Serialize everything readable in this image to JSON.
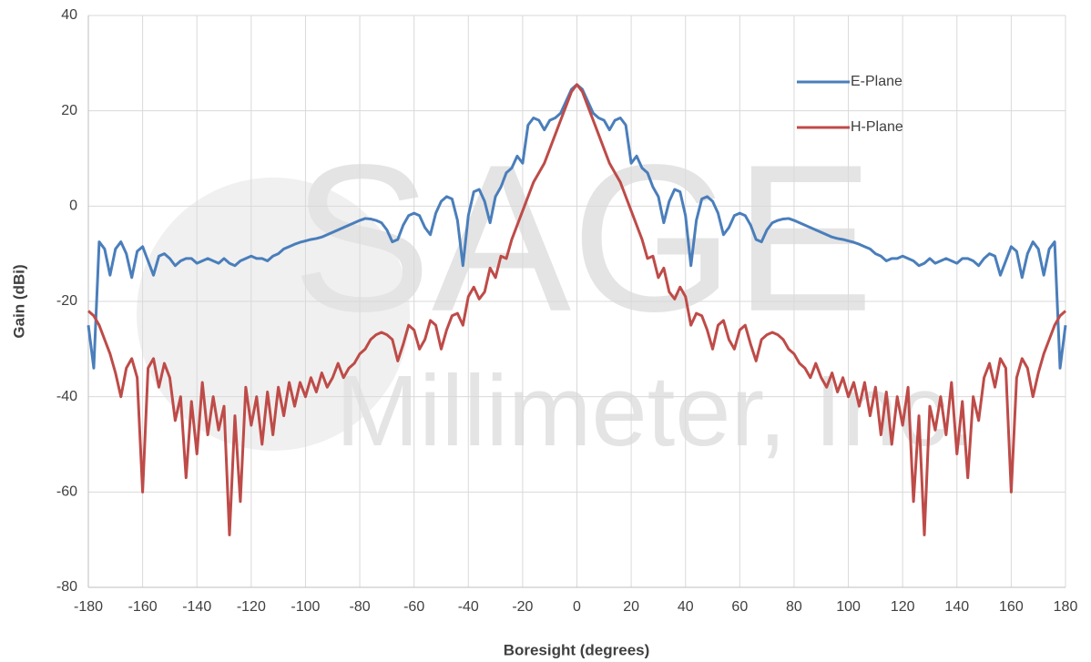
{
  "chart_data": {
    "type": "line",
    "x_label": "Boresight (degrees)",
    "y_label": "Gain (dBi)",
    "watermark": [
      "SAGE",
      "Millimeter, Inc."
    ],
    "xlim": [
      -180,
      180
    ],
    "xticks": [
      -180,
      -160,
      -140,
      -120,
      -100,
      -80,
      -60,
      -40,
      -20,
      0,
      20,
      40,
      60,
      80,
      100,
      120,
      140,
      160,
      180
    ],
    "ylim": [
      -80,
      40
    ],
    "yticks": [
      -80,
      -60,
      -40,
      -20,
      0,
      20,
      40
    ],
    "grid": true,
    "legend": "top-right",
    "x": [
      -180,
      -178,
      -176,
      -174,
      -172,
      -170,
      -168,
      -166,
      -164,
      -162,
      -160,
      -158,
      -156,
      -154,
      -152,
      -150,
      -148,
      -146,
      -144,
      -142,
      -140,
      -138,
      -136,
      -134,
      -132,
      -130,
      -128,
      -126,
      -124,
      -122,
      -120,
      -118,
      -116,
      -114,
      -112,
      -110,
      -108,
      -106,
      -104,
      -102,
      -100,
      -98,
      -96,
      -94,
      -92,
      -90,
      -88,
      -86,
      -84,
      -82,
      -80,
      -78,
      -76,
      -74,
      -72,
      -70,
      -68,
      -66,
      -64,
      -62,
      -60,
      -58,
      -56,
      -54,
      -52,
      -50,
      -48,
      -46,
      -44,
      -42,
      -40,
      -38,
      -36,
      -34,
      -32,
      -30,
      -28,
      -26,
      -24,
      -22,
      -20,
      -18,
      -16,
      -14,
      -12,
      -10,
      -8,
      -6,
      -4,
      -2,
      0,
      2,
      4,
      6,
      8,
      10,
      12,
      14,
      16,
      18,
      20,
      22,
      24,
      26,
      28,
      30,
      32,
      34,
      36,
      38,
      40,
      42,
      44,
      46,
      48,
      50,
      52,
      54,
      56,
      58,
      60,
      62,
      64,
      66,
      68,
      70,
      72,
      74,
      76,
      78,
      80,
      82,
      84,
      86,
      88,
      90,
      92,
      94,
      96,
      98,
      100,
      102,
      104,
      106,
      108,
      110,
      112,
      114,
      116,
      118,
      120,
      122,
      124,
      126,
      128,
      130,
      132,
      134,
      136,
      138,
      140,
      142,
      144,
      146,
      148,
      150,
      152,
      154,
      156,
      158,
      160,
      162,
      164,
      166,
      168,
      170,
      172,
      174,
      176,
      178,
      180
    ],
    "series": [
      {
        "name": "E-Plane",
        "color": "#4a7ebb",
        "values": [
          -25,
          -34,
          -7.5,
          -9,
          -14.5,
          -9,
          -7.5,
          -10,
          -15,
          -9.5,
          -8.5,
          -11.5,
          -14.5,
          -10.5,
          -10,
          -11,
          -12.5,
          -11.5,
          -11,
          -11,
          -12,
          -11.5,
          -11,
          -11.5,
          -12,
          -11,
          -12,
          -12.5,
          -11.5,
          -11,
          -10.5,
          -11,
          -11,
          -11.5,
          -10.5,
          -10,
          -9,
          -8.5,
          -8,
          -7.6,
          -7.3,
          -7,
          -6.8,
          -6.5,
          -6,
          -5.5,
          -5,
          -4.5,
          -4,
          -3.5,
          -3,
          -2.6,
          -2.7,
          -3,
          -3.5,
          -5,
          -7.5,
          -7,
          -4,
          -2,
          -1.5,
          -2,
          -4.5,
          -6,
          -1.5,
          1,
          2,
          1.5,
          -3,
          -12.5,
          -2,
          3,
          3.5,
          1,
          -3.5,
          2,
          4,
          7,
          8,
          10.5,
          9,
          17,
          18.5,
          18,
          16,
          18,
          18.5,
          19.5,
          22,
          24.5,
          25.5,
          24.5,
          22,
          19.5,
          18.5,
          18,
          16,
          18,
          18.5,
          17,
          9,
          10.5,
          8,
          7,
          4,
          2,
          -3.5,
          1,
          3.5,
          3,
          -2,
          -12.5,
          -3,
          1.5,
          2,
          1,
          -1.5,
          -6,
          -4.5,
          -2,
          -1.5,
          -2,
          -4,
          -7,
          -7.5,
          -5,
          -3.5,
          -3,
          -2.7,
          -2.6,
          -3,
          -3.5,
          -4,
          -4.5,
          -5,
          -5.5,
          -6,
          -6.5,
          -6.8,
          -7,
          -7.3,
          -7.6,
          -8,
          -8.5,
          -9,
          -10,
          -10.5,
          -11.5,
          -11,
          -11,
          -10.5,
          -11,
          -11.5,
          -12.5,
          -12,
          -11,
          -12,
          -11.5,
          -11,
          -11.5,
          -12,
          -11,
          -11,
          -11.5,
          -12.5,
          -11,
          -10,
          -10.5,
          -14.5,
          -11.5,
          -8.5,
          -9.5,
          -15,
          -10,
          -7.5,
          -9,
          -14.5,
          -9,
          -7.5,
          -34,
          -25
        ]
      },
      {
        "name": "H-Plane",
        "color": "#be4b48",
        "values": [
          -22,
          -23,
          -25,
          -28,
          -31,
          -35,
          -40,
          -34,
          -32,
          -36,
          -60,
          -34,
          -32,
          -38,
          -33,
          -36,
          -45,
          -40,
          -57,
          -41,
          -52,
          -37,
          -48,
          -40,
          -47,
          -42,
          -69,
          -44,
          -62,
          -38,
          -46,
          -40,
          -50,
          -39,
          -48,
          -38,
          -44,
          -37,
          -42,
          -37,
          -40,
          -36,
          -39,
          -35,
          -38,
          -36,
          -33,
          -36,
          -34,
          -33,
          -31,
          -30,
          -28,
          -27,
          -26.5,
          -27,
          -28,
          -32.5,
          -29,
          -25,
          -26,
          -30,
          -28,
          -24,
          -25,
          -30,
          -26,
          -23,
          -22.5,
          -25,
          -19,
          -17,
          -19.5,
          -18,
          -13,
          -15,
          -10.5,
          -11,
          -7,
          -4,
          -1,
          2,
          5,
          7,
          9,
          12,
          15,
          18,
          21,
          24,
          25.5,
          24,
          21,
          18,
          15,
          12,
          9,
          7,
          5,
          2,
          -1,
          -4,
          -7,
          -11,
          -10.5,
          -15,
          -13,
          -18,
          -19.5,
          -17,
          -19,
          -25,
          -22.5,
          -23,
          -26,
          -30,
          -25,
          -24,
          -28,
          -30,
          -26,
          -25,
          -29,
          -32.5,
          -28,
          -27,
          -26.5,
          -27,
          -28,
          -30,
          -31,
          -33,
          -34,
          -36,
          -33,
          -36,
          -38,
          -35,
          -39,
          -36,
          -40,
          -37,
          -42,
          -37,
          -44,
          -38,
          -48,
          -39,
          -50,
          -40,
          -46,
          -38,
          -62,
          -44,
          -69,
          -42,
          -47,
          -40,
          -48,
          -37,
          -52,
          -41,
          -57,
          -40,
          -45,
          -36,
          -33,
          -38,
          -32,
          -34,
          -60,
          -36,
          -32,
          -34,
          -40,
          -35,
          -31,
          -28,
          -25,
          -23,
          -22
        ]
      }
    ]
  }
}
